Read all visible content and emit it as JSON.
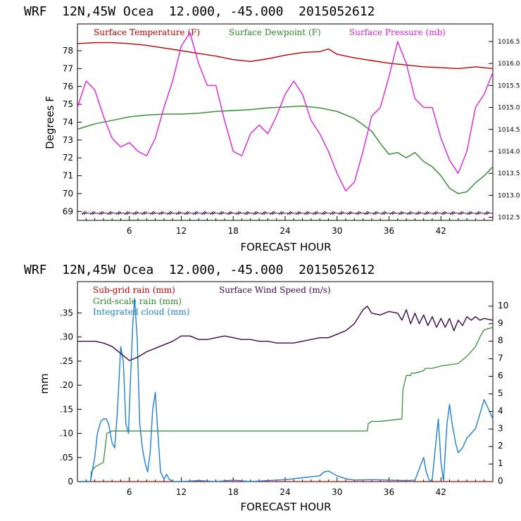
{
  "colors": {
    "temperature": "#c00000",
    "dewpoint": "#2a8a2a",
    "pressure": "#e020e0",
    "wind_barb": "#3c0a4a",
    "subgrid_rain": "#c00000",
    "grid_rain": "#2a8a2a",
    "cloud": "#1f7fd0",
    "wind_speed": "#3c0a4a"
  },
  "chart_data": [
    {
      "type": "line",
      "header": "WRF  12N,45W Ocea  12.000, -45.000  2015052612",
      "xlabel": "FORECAST HOUR",
      "ylabel": "Degrees F",
      "xlim": [
        0,
        48
      ],
      "ylim": [
        68.5,
        79.5
      ],
      "y2lim": [
        1012.43,
        1016.9
      ],
      "xticks": [
        "6",
        "12",
        "18",
        "24",
        "30",
        "36",
        "42"
      ],
      "yticks": [
        "69",
        "70",
        "71",
        "72",
        "73",
        "74",
        "75",
        "76",
        "77",
        "78"
      ],
      "y2ticks": [
        "1012.5",
        "1013.0",
        "1013.5",
        "1014.0",
        "1014.5",
        "1015.0",
        "1015.5",
        "1016.0",
        "1016.5"
      ],
      "legend": [
        "Surface Temperature (F)",
        "Surface Dewpoint (F)",
        "Surface Pressure (mb)"
      ],
      "wind_barbs": {
        "y": 68.9,
        "count": 48
      },
      "series": {
        "temperature": {
          "x": [
            0,
            2,
            4,
            6,
            8,
            10,
            12,
            14,
            16,
            18,
            20,
            22,
            24,
            26,
            28,
            29,
            30,
            32,
            34,
            36,
            38,
            40,
            42,
            44,
            46,
            48
          ],
          "y": [
            78.4,
            78.45,
            78.45,
            78.4,
            78.3,
            78.15,
            78.0,
            77.85,
            77.7,
            77.5,
            77.4,
            77.55,
            77.75,
            77.9,
            77.95,
            78.1,
            77.8,
            77.6,
            77.45,
            77.3,
            77.2,
            77.1,
            77.05,
            77.0,
            77.1,
            77.0
          ]
        },
        "dewpoint": {
          "x": [
            0,
            2,
            4,
            6,
            8,
            10,
            12,
            14,
            16,
            18,
            20,
            22,
            24,
            26,
            28,
            30,
            32,
            34,
            35,
            36,
            37,
            38,
            39,
            40,
            41,
            42,
            43,
            44,
            45,
            46,
            47,
            48
          ],
          "y": [
            73.6,
            73.9,
            74.1,
            74.3,
            74.4,
            74.45,
            74.45,
            74.5,
            74.6,
            74.65,
            74.7,
            74.8,
            74.85,
            74.9,
            74.8,
            74.6,
            74.2,
            73.5,
            72.8,
            72.2,
            72.3,
            72.0,
            72.3,
            71.8,
            71.5,
            71.0,
            70.3,
            70.0,
            70.1,
            70.6,
            71.0,
            71.5
          ]
        },
        "pressure": {
          "x": [
            0,
            1,
            2,
            3,
            4,
            5,
            6,
            7,
            8,
            9,
            10,
            11,
            12,
            13,
            14,
            15,
            16,
            17,
            18,
            19,
            20,
            21,
            22,
            23,
            24,
            25,
            26,
            27,
            28,
            29,
            30,
            31,
            32,
            33,
            34,
            35,
            36,
            37,
            38,
            39,
            40,
            41,
            42,
            43,
            44,
            45,
            46,
            47,
            48
          ],
          "y": [
            1015.0,
            1015.6,
            1015.4,
            1014.8,
            1014.3,
            1014.1,
            1014.2,
            1014.0,
            1013.9,
            1014.3,
            1015.0,
            1015.6,
            1016.4,
            1016.7,
            1016.0,
            1015.5,
            1015.5,
            1014.7,
            1014.0,
            1013.9,
            1014.4,
            1014.6,
            1014.4,
            1014.8,
            1015.3,
            1015.6,
            1015.3,
            1014.7,
            1014.4,
            1014.0,
            1013.5,
            1013.1,
            1013.3,
            1014.0,
            1014.8,
            1015.0,
            1015.7,
            1016.5,
            1016.0,
            1015.2,
            1015.0,
            1015.0,
            1014.3,
            1013.8,
            1013.5,
            1014.0,
            1015.0,
            1015.3,
            1015.8
          ]
        }
      }
    },
    {
      "type": "line",
      "header": "WRF  12N,45W Ocea  12.000, -45.000  2015052612",
      "xlabel": "FORECAST HOUR",
      "ylabel": "mm",
      "xlim": [
        0,
        48
      ],
      "ylim": [
        0,
        0.415
      ],
      "y2lim": [
        0,
        11.4
      ],
      "xticks": [
        "6",
        "12",
        "18",
        "24",
        "30",
        "36",
        "42"
      ],
      "yticks": [
        "0",
        ".05",
        ".10",
        ".15",
        ".20",
        ".25",
        ".30",
        ".35"
      ],
      "y2ticks": [
        "0",
        "1",
        "2",
        "3",
        "4",
        "5",
        "6",
        "7",
        "8",
        "9",
        "10"
      ],
      "legend": [
        "Sub-grid rain (mm)",
        "Grid-scale rain (mm)",
        "Integrated cloud (mm)",
        "Surface Wind Speed (m/s)"
      ],
      "series": {
        "subgrid_rain": {
          "x": [
            0,
            48
          ],
          "y": [
            0,
            0
          ]
        },
        "grid_rain": {
          "x": [
            0,
            1.5,
            1.6,
            2,
            3,
            3.2,
            3.4,
            4,
            4.2,
            5,
            6,
            10,
            15,
            20,
            25,
            30,
            33.5,
            33.6,
            34,
            35,
            37.5,
            37.6,
            38,
            38.5,
            38.6,
            39,
            40,
            40.2,
            41,
            42,
            44,
            45,
            46,
            46.5,
            47,
            48
          ],
          "y": [
            0,
            0,
            0.02,
            0.03,
            0.04,
            0.07,
            0.1,
            0.105,
            0.105,
            0.105,
            0.105,
            0.105,
            0.105,
            0.105,
            0.105,
            0.105,
            0.105,
            0.12,
            0.125,
            0.125,
            0.13,
            0.19,
            0.22,
            0.22,
            0.225,
            0.225,
            0.23,
            0.235,
            0.235,
            0.24,
            0.245,
            0.26,
            0.28,
            0.3,
            0.315,
            0.32
          ]
        },
        "cloud": {
          "x": [
            0,
            1.5,
            2,
            2.3,
            2.7,
            3,
            3.3,
            3.6,
            4,
            4.3,
            4.6,
            5,
            5.3,
            5.6,
            5.9,
            6.1,
            6.4,
            6.6,
            6.9,
            7.2,
            7.5,
            7.8,
            8.1,
            8.4,
            8.7,
            9,
            9.3,
            9.6,
            10,
            10.3,
            10.6,
            11,
            12,
            14,
            16,
            18,
            20,
            22,
            24,
            26,
            27,
            28,
            28.5,
            29,
            30,
            31,
            32,
            34,
            36,
            38,
            39,
            40,
            40.3,
            40.7,
            41,
            41.3,
            41.7,
            42,
            42.3,
            42.7,
            43,
            43.3,
            43.7,
            44,
            44.5,
            45,
            45.5,
            46,
            46.5,
            47,
            47.5,
            48
          ],
          "y": [
            0,
            0,
            0.05,
            0.1,
            0.125,
            0.13,
            0.13,
            0.12,
            0.08,
            0.07,
            0.14,
            0.28,
            0.25,
            0.12,
            0.1,
            0.2,
            0.33,
            0.38,
            0.3,
            0.12,
            0.07,
            0.04,
            0.02,
            0.06,
            0.15,
            0.185,
            0.1,
            0.02,
            0.005,
            0.015,
            0.005,
            0,
            0,
            0.002,
            0,
            0.003,
            0,
            0.002,
            0.004,
            0.008,
            0.01,
            0.012,
            0.02,
            0.022,
            0.012,
            0.006,
            0.003,
            0.004,
            0.003,
            0.002,
            0.003,
            0.05,
            0.02,
            0.0,
            0.005,
            0.06,
            0.13,
            0.04,
            0.0,
            0.12,
            0.16,
            0.12,
            0.08,
            0.06,
            0.07,
            0.09,
            0.1,
            0.11,
            0.14,
            0.17,
            0.15,
            0.13
          ]
        },
        "wind_speed": {
          "x": [
            0,
            1,
            2,
            3,
            4,
            5,
            6,
            7,
            8,
            9,
            10,
            11,
            12,
            13,
            14,
            15,
            16,
            17,
            18,
            19,
            20,
            21,
            22,
            23,
            24,
            25,
            26,
            27,
            28,
            29,
            30,
            31,
            32,
            33,
            33.5,
            34,
            35,
            36,
            37,
            37.5,
            38,
            38.5,
            39,
            39.5,
            40,
            40.5,
            41,
            41.5,
            42,
            42.5,
            43,
            43.5,
            44,
            44.5,
            45,
            45.5,
            46,
            46.5,
            47,
            48
          ],
          "y": [
            8.0,
            8.0,
            8.0,
            7.9,
            7.7,
            7.3,
            6.9,
            7.1,
            7.4,
            7.6,
            7.8,
            8.0,
            8.3,
            8.3,
            8.1,
            8.1,
            8.2,
            8.3,
            8.2,
            8.1,
            8.1,
            8.0,
            8.0,
            7.9,
            7.9,
            7.9,
            8.0,
            8.1,
            8.2,
            8.2,
            8.4,
            8.6,
            9.0,
            9.8,
            10.0,
            9.6,
            9.5,
            9.7,
            9.6,
            9.2,
            9.8,
            9.0,
            9.6,
            9.0,
            9.5,
            8.9,
            9.4,
            8.8,
            9.3,
            8.8,
            9.3,
            8.6,
            9.2,
            8.9,
            9.4,
            9.2,
            9.4,
            9.2,
            9.3,
            9.2
          ]
        }
      }
    }
  ]
}
